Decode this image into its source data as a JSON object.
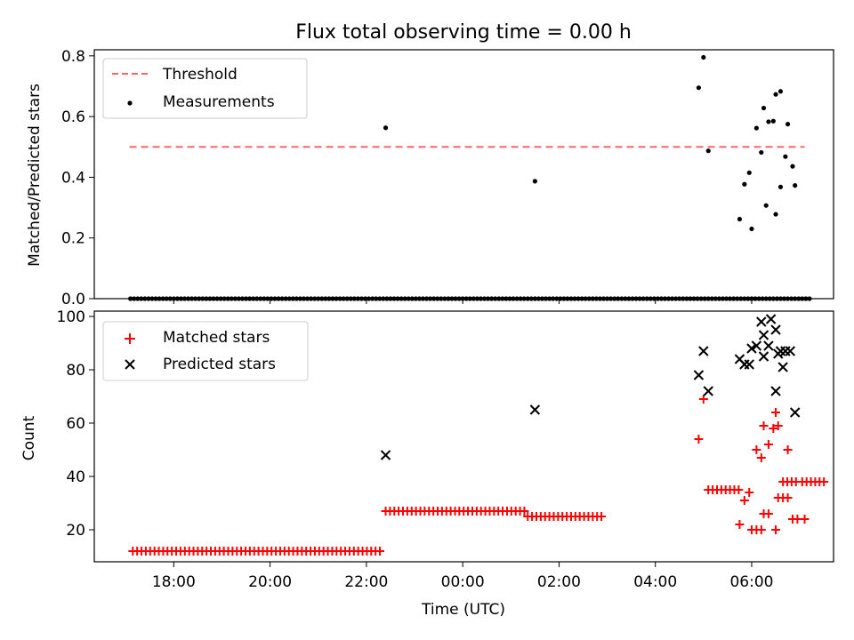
{
  "chart_data": [
    {
      "type": "scatter",
      "title": "Flux total observing time = 0.00 h",
      "xlabel": "",
      "ylabel": "Matched/Predicted stars",
      "ylim": [
        0,
        0.82
      ],
      "yticks": [
        "0.0",
        "0.2",
        "0.4",
        "0.6",
        "0.8"
      ],
      "ytick_values": [
        0,
        0.2,
        0.4,
        0.6,
        0.8
      ],
      "legend_position": "top-left",
      "threshold": {
        "name": "Threshold",
        "value": 0.5,
        "x_start": 17.08,
        "x_end": 31.1,
        "color": "#ff6666"
      },
      "series": [
        {
          "name": "Measurements",
          "color": "#000000",
          "x_range_zero": [
            17.1,
            31.2
          ],
          "points": [
            [
              22.4,
              0.563
            ],
            [
              25.5,
              0.387
            ],
            [
              28.9,
              0.695
            ],
            [
              29.0,
              0.795
            ],
            [
              29.1,
              0.487
            ],
            [
              29.75,
              0.262
            ],
            [
              29.85,
              0.377
            ],
            [
              29.95,
              0.415
            ],
            [
              30.1,
              0.562
            ],
            [
              30.2,
              0.482
            ],
            [
              30.25,
              0.628
            ],
            [
              30.35,
              0.583
            ],
            [
              30.45,
              0.585
            ],
            [
              30.5,
              0.673
            ],
            [
              30.6,
              0.683
            ],
            [
              30.7,
              0.468
            ],
            [
              30.75,
              0.575
            ],
            [
              30.85,
              0.436
            ],
            [
              30.0,
              0.0
            ],
            [
              30.0,
              0.23
            ],
            [
              30.3,
              0.307
            ],
            [
              30.5,
              0.278
            ],
            [
              30.6,
              0.368
            ],
            [
              30.9,
              0.373
            ]
          ]
        }
      ]
    },
    {
      "type": "scatter",
      "title": "",
      "xlabel": "Time (UTC)",
      "ylabel": "Count",
      "ylim": [
        8,
        102
      ],
      "yticks": [
        "20",
        "40",
        "60",
        "80",
        "100"
      ],
      "ytick_values": [
        20,
        40,
        60,
        80,
        100
      ],
      "xlim": [
        16.35,
        31.7
      ],
      "xticks": [
        "18:00",
        "20:00",
        "22:00",
        "00:00",
        "02:00",
        "04:00",
        "06:00"
      ],
      "xtick_values": [
        18,
        20,
        22,
        24,
        26,
        28,
        30
      ],
      "legend_position": "top-left",
      "series": [
        {
          "name": "Matched stars",
          "color": "#ff0000",
          "marker": "+"
        },
        {
          "name": "Predicted stars",
          "color": "#000000",
          "marker": "x",
          "points": [
            [
              22.4,
              48
            ],
            [
              25.5,
              65
            ],
            [
              28.9,
              78
            ],
            [
              29.0,
              87
            ],
            [
              29.1,
              72
            ],
            [
              29.75,
              84
            ],
            [
              29.85,
              82
            ],
            [
              29.95,
              82
            ],
            [
              30.1,
              89
            ],
            [
              30.2,
              98
            ],
            [
              30.25,
              93
            ],
            [
              30.35,
              89
            ],
            [
              30.4,
              99
            ],
            [
              30.5,
              95
            ],
            [
              30.55,
              86
            ],
            [
              30.65,
              81
            ],
            [
              30.7,
              87
            ],
            [
              30.8,
              87
            ],
            [
              30.0,
              88
            ],
            [
              30.25,
              85
            ],
            [
              30.5,
              72
            ],
            [
              30.6,
              87
            ],
            [
              30.9,
              64
            ]
          ]
        }
      ]
    }
  ]
}
